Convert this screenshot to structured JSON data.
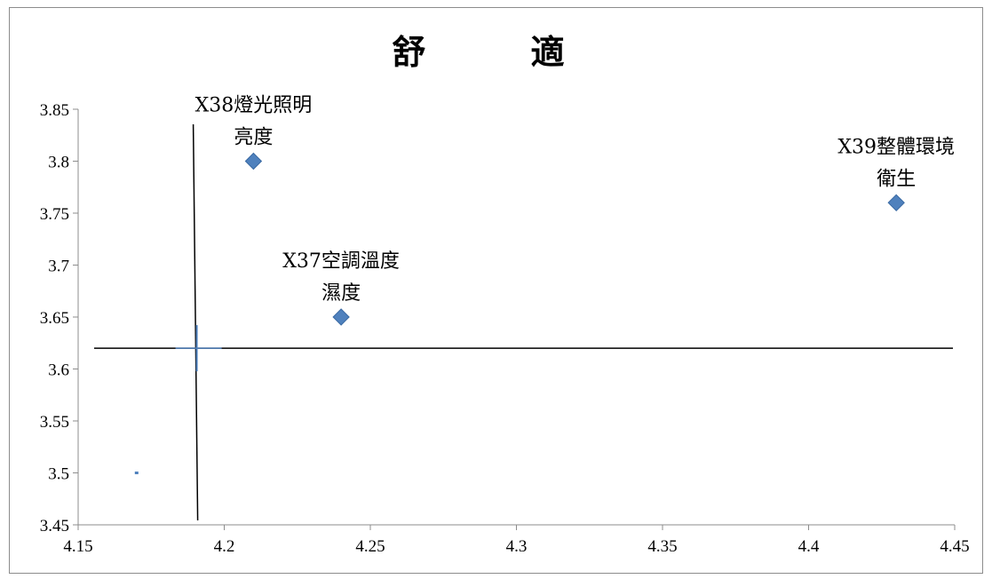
{
  "chart_data": {
    "type": "scatter",
    "title": "舒　適",
    "xlabel": "",
    "ylabel": "",
    "xlim": [
      4.15,
      4.45
    ],
    "ylim": [
      3.45,
      3.85
    ],
    "xticks": [
      "4.15",
      "4.2",
      "4.25",
      "4.3",
      "4.35",
      "4.4",
      "4.45"
    ],
    "yticks": [
      "3.45",
      "3.5",
      "3.55",
      "3.6",
      "3.65",
      "3.7",
      "3.75",
      "3.8",
      "3.85"
    ],
    "grid": false,
    "marker_color": "#4f81bd",
    "points": [
      {
        "x": 4.21,
        "y": 3.8,
        "label_lines": [
          "X38燈光照明",
          "亮度"
        ]
      },
      {
        "x": 4.24,
        "y": 3.65,
        "label_lines": [
          "X37空調溫度",
          "濕度"
        ]
      },
      {
        "x": 4.43,
        "y": 3.76,
        "label_lines": [
          "X39整體環境",
          "衛生"
        ]
      },
      {
        "x": 4.17,
        "y": 3.5,
        "label_lines": []
      }
    ],
    "reference_lines": {
      "vertical_x": 4.19,
      "horizontal_y": 3.62
    }
  }
}
